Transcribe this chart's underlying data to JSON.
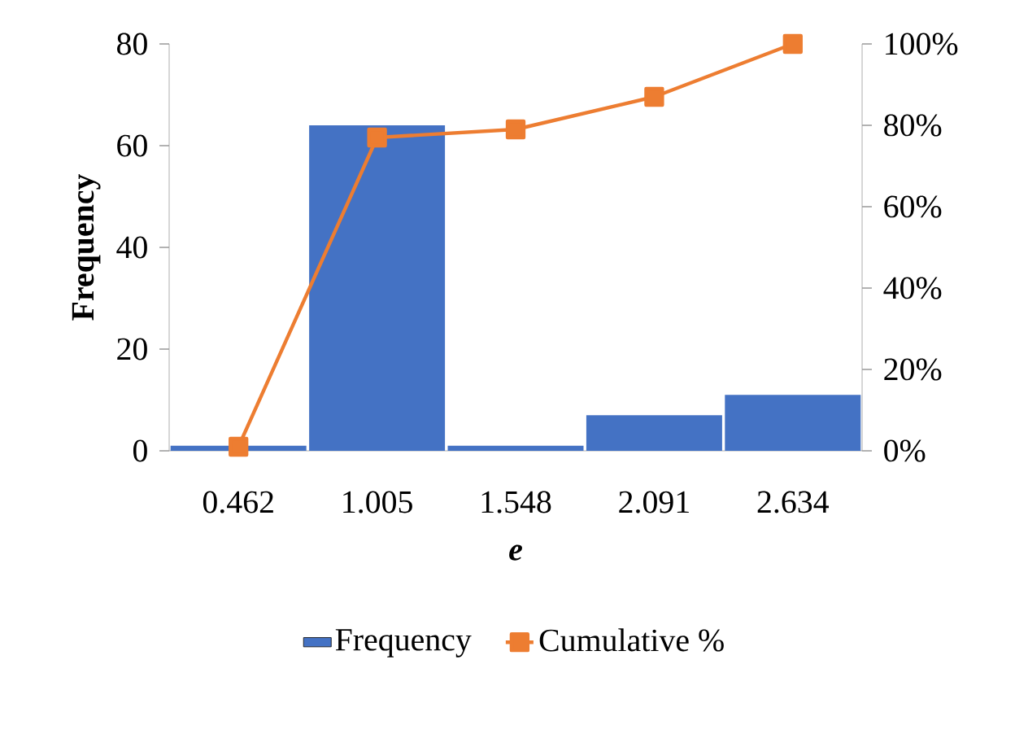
{
  "chart_data": {
    "type": "bar",
    "categories": [
      "0.462",
      "1.005",
      "1.548",
      "2.091",
      "2.634"
    ],
    "xlabel": "e",
    "ylabel": "Frequency",
    "series": [
      {
        "name": "Frequency",
        "color": "#4472c4",
        "values": [
          1,
          64,
          1,
          7,
          11
        ]
      },
      {
        "name": "Cumulative %",
        "type": "line",
        "axis": "y2",
        "color": "#ed7d31",
        "marker": "square",
        "values": [
          1,
          77,
          79,
          87,
          100
        ]
      }
    ],
    "ylim": [
      0,
      80
    ],
    "yticks": [
      0,
      20,
      40,
      60,
      80
    ],
    "y2lim": [
      0,
      100
    ],
    "y2ticks": [
      {
        "value": 0,
        "label": "0%"
      },
      {
        "value": 20,
        "label": "20%"
      },
      {
        "value": 40,
        "label": "40%"
      },
      {
        "value": 60,
        "label": "60%"
      },
      {
        "value": 80,
        "label": "80%"
      },
      {
        "value": 100,
        "label": "100%"
      }
    ],
    "legend": "bottom"
  }
}
